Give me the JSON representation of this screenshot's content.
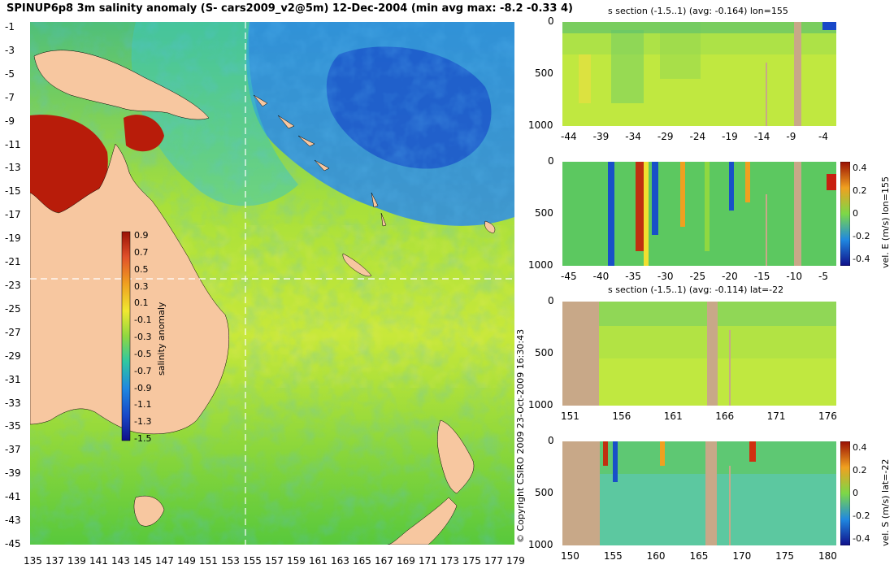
{
  "title": "SPINUP6p8 3m salinity anomaly (S- cars2009_v2@5m) 12-Dec-2004 (min avg max: -8.2 -0.33 4)",
  "copyright": "© Copyright CSIRO 2009   23-Oct-2009 16:30:43",
  "colors": {
    "land": "#f7c7a0",
    "section_land": "#c8a888",
    "water_mid": "#7fdc3a",
    "water_low": "#1a7fe0",
    "water_high": "#b81c0a"
  },
  "main_map": {
    "x_ticks": [
      "135",
      "137",
      "139",
      "141",
      "143",
      "145",
      "147",
      "149",
      "151",
      "153",
      "155",
      "157",
      "159",
      "161",
      "163",
      "165",
      "167",
      "169",
      "171",
      "173",
      "175",
      "177",
      "179"
    ],
    "y_ticks": [
      "-1",
      "-3",
      "-5",
      "-7",
      "-9",
      "-11",
      "-13",
      "-15",
      "-17",
      "-19",
      "-21",
      "-23",
      "-25",
      "-27",
      "-29",
      "-31",
      "-33",
      "-35",
      "-37",
      "-39",
      "-41",
      "-43",
      "-45"
    ],
    "colorbar": {
      "label": "salinity anomaly",
      "ticks": [
        "0.9",
        "0.7",
        "0.5",
        "0.3",
        "0.1",
        "-0.1",
        "-0.3",
        "-0.5",
        "-0.7",
        "-0.9",
        "-1.1",
        "-1.3",
        "-1.5"
      ]
    }
  },
  "panels": [
    {
      "title": "s section (-1.5..1) (avg: -0.164) lon=155",
      "x_ticks": [
        "-44",
        "-39",
        "-34",
        "-29",
        "-24",
        "-19",
        "-14",
        "-9",
        "-4"
      ],
      "y_ticks": [
        "0",
        "500",
        "1000"
      ],
      "colorbar_label": "",
      "colorbar_ticks": []
    },
    {
      "title": "",
      "x_ticks": [
        "-45",
        "-40",
        "-35",
        "-30",
        "-25",
        "-20",
        "-15",
        "-10",
        "-5"
      ],
      "y_ticks": [
        "0",
        "500",
        "1000"
      ],
      "colorbar_label": "vel. E (m/s) lon=155",
      "colorbar_ticks": [
        "0.4",
        "0.2",
        "0",
        "-0.2",
        "-0.4"
      ]
    },
    {
      "title": "s section (-1.5..1) (avg: -0.114) lat=-22",
      "x_ticks": [
        "151",
        "156",
        "161",
        "166",
        "171",
        "176"
      ],
      "y_ticks": [
        "0",
        "500",
        "1000"
      ],
      "colorbar_label": "",
      "colorbar_ticks": []
    },
    {
      "title": "",
      "x_ticks": [
        "150",
        "155",
        "160",
        "165",
        "170",
        "175",
        "180"
      ],
      "y_ticks": [
        "0",
        "500",
        "1000"
      ],
      "colorbar_label": "vel. S (m/s) lat=-22",
      "colorbar_ticks": [
        "0.4",
        "0.2",
        "0",
        "-0.2",
        "-0.4"
      ]
    }
  ]
}
